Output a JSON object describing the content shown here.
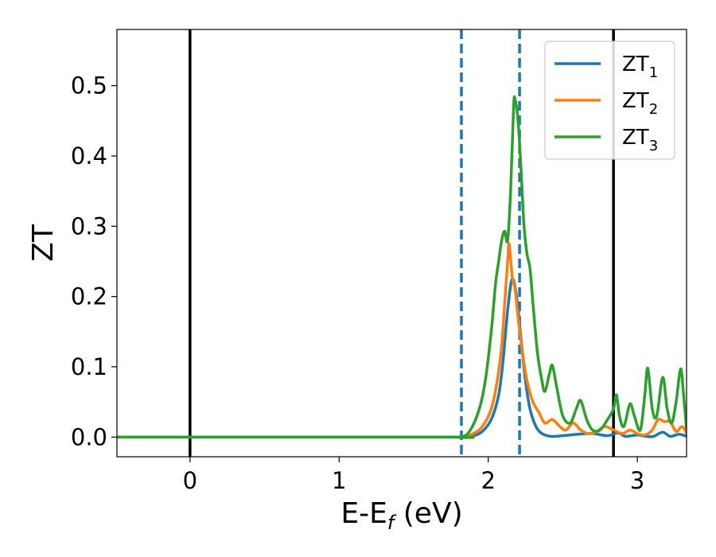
{
  "chart_data": {
    "type": "line",
    "xlabel": "E-E",
    "xlabel_sub": "f",
    "xlabel_unit": " (eV)",
    "ylabel": "ZT",
    "xlim": [
      -0.49,
      3.33
    ],
    "ylim": [
      -0.028,
      0.58
    ],
    "xticks": [
      0,
      1,
      2,
      3
    ],
    "xtick_labels": [
      "0",
      "1",
      "2",
      "3"
    ],
    "yticks": [
      0.0,
      0.1,
      0.2,
      0.3,
      0.4,
      0.5
    ],
    "ytick_labels": [
      "0.0",
      "0.1",
      "0.2",
      "0.3",
      "0.4",
      "0.5"
    ],
    "grid": false,
    "legend_position": "top-right",
    "vertical_lines": [
      {
        "x": 0.0,
        "style": "solid",
        "color": "#000000"
      },
      {
        "x": 2.84,
        "style": "solid",
        "color": "#000000"
      },
      {
        "x": 1.82,
        "style": "dashed",
        "color": "#1f77b4"
      },
      {
        "x": 2.21,
        "style": "dashed",
        "color": "#1f77b4"
      }
    ],
    "series": [
      {
        "name": "ZT",
        "name_sub": "1",
        "color": "#1f77b4",
        "points": [
          [
            -0.49,
            0.0
          ],
          [
            1.7,
            0.0
          ],
          [
            1.82,
            0.0
          ],
          [
            1.9,
            0.002
          ],
          [
            1.96,
            0.008
          ],
          [
            2.02,
            0.025
          ],
          [
            2.07,
            0.06
          ],
          [
            2.1,
            0.11
          ],
          [
            2.13,
            0.18
          ],
          [
            2.16,
            0.225
          ],
          [
            2.19,
            0.2
          ],
          [
            2.22,
            0.14
          ],
          [
            2.25,
            0.08
          ],
          [
            2.28,
            0.04
          ],
          [
            2.32,
            0.015
          ],
          [
            2.36,
            0.005
          ],
          [
            2.42,
            0.001
          ],
          [
            2.5,
            0.002
          ],
          [
            2.6,
            0.004
          ],
          [
            2.7,
            0.005
          ],
          [
            2.8,
            0.002
          ],
          [
            2.87,
            0.006
          ],
          [
            2.92,
            0.001
          ],
          [
            3.0,
            0.003
          ],
          [
            3.06,
            0.001
          ],
          [
            3.11,
            0.001
          ],
          [
            3.17,
            0.007
          ],
          [
            3.22,
            0.001
          ],
          [
            3.28,
            0.004
          ],
          [
            3.33,
            0.001
          ]
        ]
      },
      {
        "name": "ZT",
        "name_sub": "2",
        "color": "#ff7f0e",
        "points": [
          [
            -0.49,
            0.0
          ],
          [
            1.7,
            0.0
          ],
          [
            1.82,
            0.0
          ],
          [
            1.9,
            0.005
          ],
          [
            1.96,
            0.015
          ],
          [
            2.02,
            0.04
          ],
          [
            2.06,
            0.08
          ],
          [
            2.09,
            0.13
          ],
          [
            2.11,
            0.19
          ],
          [
            2.13,
            0.25
          ],
          [
            2.14,
            0.275
          ],
          [
            2.16,
            0.23
          ],
          [
            2.18,
            0.21
          ],
          [
            2.2,
            0.17
          ],
          [
            2.23,
            0.12
          ],
          [
            2.26,
            0.08
          ],
          [
            2.3,
            0.05
          ],
          [
            2.34,
            0.035
          ],
          [
            2.38,
            0.02
          ],
          [
            2.43,
            0.025
          ],
          [
            2.48,
            0.015
          ],
          [
            2.52,
            0.01
          ],
          [
            2.57,
            0.02
          ],
          [
            2.62,
            0.01
          ],
          [
            2.67,
            0.005
          ],
          [
            2.72,
            0.007
          ],
          [
            2.78,
            0.015
          ],
          [
            2.84,
            0.01
          ],
          [
            2.9,
            0.005
          ],
          [
            2.95,
            0.01
          ],
          [
            3.0,
            0.005
          ],
          [
            3.05,
            0.003
          ],
          [
            3.1,
            0.01
          ],
          [
            3.14,
            0.025
          ],
          [
            3.18,
            0.022
          ],
          [
            3.22,
            0.022
          ],
          [
            3.26,
            0.008
          ],
          [
            3.3,
            0.015
          ],
          [
            3.33,
            0.005
          ]
        ]
      },
      {
        "name": "ZT",
        "name_sub": "3",
        "color": "#2ca02c",
        "points": [
          [
            -0.49,
            0.0
          ],
          [
            1.7,
            0.0
          ],
          [
            1.82,
            0.0
          ],
          [
            1.88,
            0.01
          ],
          [
            1.94,
            0.04
          ],
          [
            1.98,
            0.08
          ],
          [
            2.02,
            0.15
          ],
          [
            2.05,
            0.22
          ],
          [
            2.07,
            0.25
          ],
          [
            2.09,
            0.28
          ],
          [
            2.11,
            0.293
          ],
          [
            2.13,
            0.28
          ],
          [
            2.15,
            0.35
          ],
          [
            2.17,
            0.47
          ],
          [
            2.18,
            0.48
          ],
          [
            2.2,
            0.45
          ],
          [
            2.22,
            0.38
          ],
          [
            2.24,
            0.3
          ],
          [
            2.26,
            0.26
          ],
          [
            2.28,
            0.24
          ],
          [
            2.3,
            0.19
          ],
          [
            2.33,
            0.12
          ],
          [
            2.36,
            0.08
          ],
          [
            2.38,
            0.065
          ],
          [
            2.41,
            0.09
          ],
          [
            2.43,
            0.102
          ],
          [
            2.46,
            0.07
          ],
          [
            2.5,
            0.03
          ],
          [
            2.55,
            0.02
          ],
          [
            2.59,
            0.04
          ],
          [
            2.62,
            0.052
          ],
          [
            2.66,
            0.025
          ],
          [
            2.7,
            0.01
          ],
          [
            2.75,
            0.01
          ],
          [
            2.8,
            0.025
          ],
          [
            2.84,
            0.04
          ],
          [
            2.86,
            0.06
          ],
          [
            2.88,
            0.03
          ],
          [
            2.91,
            0.015
          ],
          [
            2.95,
            0.047
          ],
          [
            2.98,
            0.03
          ],
          [
            3.02,
            0.01
          ],
          [
            3.05,
            0.06
          ],
          [
            3.07,
            0.098
          ],
          [
            3.1,
            0.04
          ],
          [
            3.13,
            0.03
          ],
          [
            3.17,
            0.085
          ],
          [
            3.2,
            0.04
          ],
          [
            3.23,
            0.02
          ],
          [
            3.26,
            0.05
          ],
          [
            3.29,
            0.097
          ],
          [
            3.31,
            0.06
          ],
          [
            3.33,
            0.01
          ]
        ]
      }
    ]
  }
}
